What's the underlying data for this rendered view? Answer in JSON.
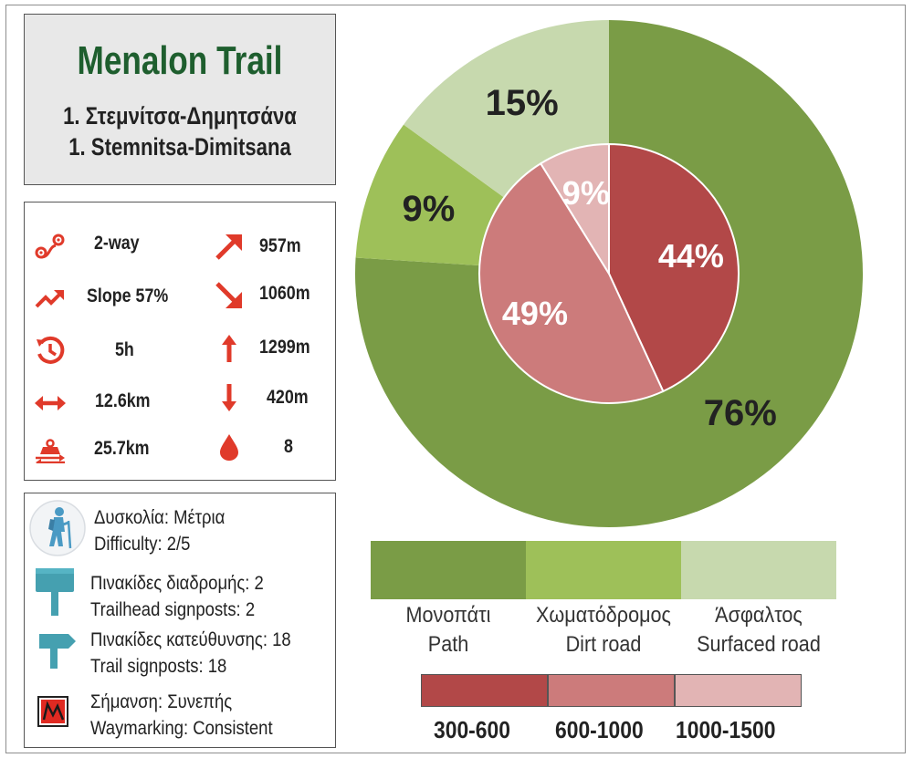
{
  "title": {
    "main": "Menalon Trail",
    "line_gr": "1. Στεμνίτσα-Δημητσάνα",
    "line_en": "1. Stemnitsa-Dimitsana"
  },
  "stats": [
    {
      "icon": "route-icon",
      "value": "2-way"
    },
    {
      "icon": "ascent-arrow-icon",
      "value": "957m"
    },
    {
      "icon": "slope-icon",
      "value": "Slope 57%"
    },
    {
      "icon": "descent-arrow-icon",
      "value": "1060m"
    },
    {
      "icon": "clock-icon",
      "value": "5h"
    },
    {
      "icon": "max-altitude-icon",
      "value": "1299m"
    },
    {
      "icon": "distance-icon",
      "value": "12.6km"
    },
    {
      "icon": "min-altitude-icon",
      "value": "420m"
    },
    {
      "icon": "effort-weight-icon",
      "value": "25.7km"
    },
    {
      "icon": "water-drop-icon",
      "value": "8"
    }
  ],
  "info": {
    "difficulty_gr": "Δυσκολία: Μέτρια",
    "difficulty_en": "Difficulty: 2/5",
    "trailhead_gr": "Πινακίδες διαδρομής: 2",
    "trailhead_en": "Trailhead signposts: 2",
    "trail_signs_gr": "Πινακίδες κατεύθυνσης: 18",
    "trail_signs_en": "Trail signposts: 18",
    "waymark_gr": "Σήμανση: Συνεπής",
    "waymark_en": "Waymarking: Consistent"
  },
  "colors": {
    "accent_red": "#e03a2a",
    "title_green": "#1e5e2e",
    "path": "#7a9c46",
    "dirt_road": "#9ec059",
    "surfaced_road": "#c7d9ae",
    "alt_low": "#b24848",
    "alt_mid": "#cc7b7b",
    "alt_high": "#e2b4b4"
  },
  "chart_data": [
    {
      "type": "pie",
      "ring": "outer",
      "series": [
        {
          "name": "Μονοπάτι Path",
          "value": 76,
          "label": "76%",
          "color": "#7a9c46"
        },
        {
          "name": "Χωματόδρομος Dirt road",
          "value": 9,
          "label": "9%",
          "color": "#9ec059"
        },
        {
          "name": "Άσφαλτος Surfaced road",
          "value": 15,
          "label": "15%",
          "color": "#c7d9ae"
        }
      ]
    },
    {
      "type": "pie",
      "ring": "inner",
      "series": [
        {
          "name": "300-600",
          "value": 44,
          "label": "44%",
          "color": "#b24848"
        },
        {
          "name": "600-1000",
          "value": 49,
          "label": "49%",
          "color": "#cc7b7b"
        },
        {
          "name": "1000-1500",
          "value": 9,
          "label": "9%",
          "color": "#e2b4b4"
        }
      ]
    }
  ],
  "legend_surface": [
    {
      "gr": "Μονοπάτι",
      "en": "Path",
      "color": "#7a9c46"
    },
    {
      "gr": "Χωματόδρομος",
      "en": "Dirt road",
      "color": "#9ec059"
    },
    {
      "gr": "Άσφαλτος",
      "en": "Surfaced road",
      "color": "#c7d9ae"
    }
  ],
  "legend_altitude": [
    {
      "label": "300-600",
      "color": "#b24848"
    },
    {
      "label": "600-1000",
      "color": "#cc7b7b"
    },
    {
      "label": "1000-1500",
      "color": "#e2b4b4"
    }
  ]
}
